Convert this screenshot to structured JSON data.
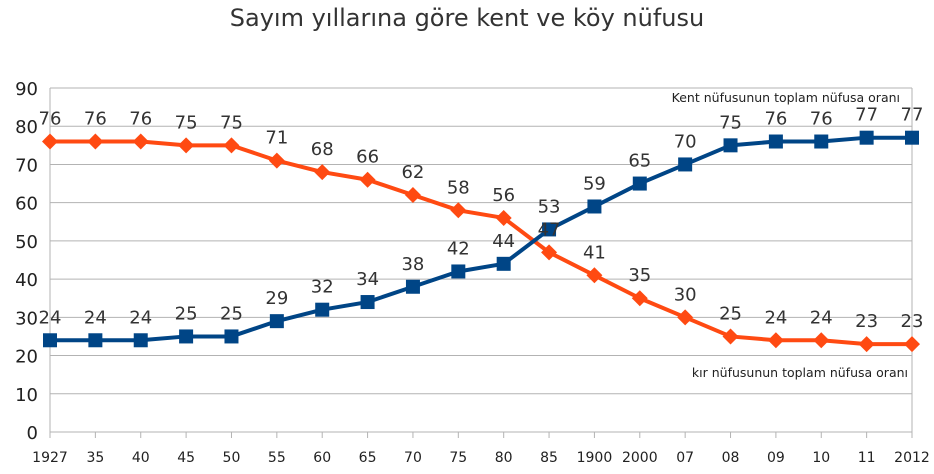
{
  "chart_data": {
    "type": "line",
    "title": "Sayım yıllarına göre kent ve köy nüfusu",
    "categories": [
      "1927",
      "35",
      "40",
      "45",
      "50",
      "55",
      "60",
      "65",
      "70",
      "75",
      "80",
      "85",
      "1900",
      "2000",
      "07",
      "08",
      "09",
      "10",
      "11",
      "2012"
    ],
    "series": [
      {
        "name": "kır nüfusunun toplam nüfusa oranı",
        "color": "#ff4a12",
        "marker": "diamond",
        "values": [
          76,
          76,
          76,
          75,
          75,
          71,
          68,
          66,
          62,
          58,
          56,
          47,
          41,
          35,
          30,
          25,
          24,
          24,
          23,
          23
        ]
      },
      {
        "name": "Kent nüfusunun toplam nüfusa oranı",
        "color": "#004586",
        "marker": "square",
        "values": [
          24,
          24,
          24,
          25,
          25,
          29,
          32,
          34,
          38,
          42,
          44,
          53,
          59,
          65,
          70,
          75,
          76,
          76,
          77,
          77
        ]
      }
    ],
    "ylim": [
      0,
      90
    ],
    "yticks": [
      0,
      10,
      20,
      30,
      40,
      50,
      60,
      70,
      80,
      90
    ],
    "grid": true,
    "xlabel": "",
    "ylabel": ""
  }
}
